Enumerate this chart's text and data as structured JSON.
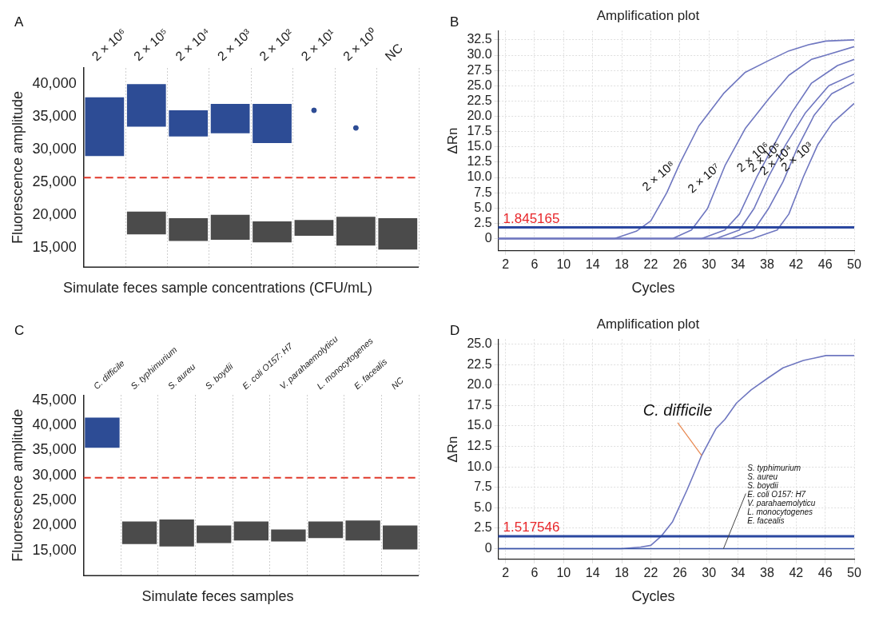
{
  "chart_data": [
    {
      "type": "bar",
      "annotations": [
        "A"
      ],
      "categories": [
        "2 × 10⁶",
        "2 × 10⁵",
        "2 × 10⁴",
        "2 × 10³",
        "2 × 10²",
        "2 × 10¹",
        "2 × 10⁰",
        "NC"
      ],
      "xlabel": "Simulate feces sample concentrations (CFU/mL)",
      "ylabel": "Fluorescence amplitude",
      "ylim": [
        12000,
        42500
      ],
      "yticks": [
        {
          "value": 15000,
          "label": "15,000"
        },
        {
          "value": 20000,
          "label": "20,000"
        },
        {
          "value": 25000,
          "label": "25,000"
        },
        {
          "value": 30000,
          "label": "30,000"
        },
        {
          "value": 35000,
          "label": "35,000"
        },
        {
          "value": 40000,
          "label": "40,000"
        }
      ],
      "grid": "x",
      "ref_lines": [
        {
          "axis": "y",
          "value": 25700,
          "color": "#e0392b",
          "line_style": "dashed"
        }
      ],
      "series": [
        {
          "color": "#2d4c95",
          "base": [
            29000,
            33500,
            32000,
            32500,
            31000,
            null,
            null,
            null
          ],
          "values": [
            9000,
            6500,
            4000,
            4500,
            6000,
            null,
            null,
            null
          ]
        },
        {
          "color": "#4b4b4b",
          "base": [
            null,
            17000,
            16000,
            16200,
            15800,
            16800,
            15300,
            14700
          ],
          "values": [
            null,
            3500,
            3500,
            3800,
            3200,
            2400,
            4400,
            4800
          ]
        },
        {
          "type": "scatter",
          "color": "#2d4c95",
          "marker": "circle",
          "x": [
            "2 × 10¹",
            "2 × 10⁰"
          ],
          "values": [
            36000,
            33300
          ]
        }
      ]
    },
    {
      "type": "line",
      "annotations": [
        "B"
      ],
      "title": "Amplification plot",
      "xlabel": "Cycles",
      "ylabel": "ΔRn",
      "xlim": [
        1,
        50
      ],
      "xticks": [
        2,
        6,
        10,
        14,
        18,
        22,
        26,
        30,
        34,
        38,
        42,
        46,
        50
      ],
      "ylim": [
        -2,
        34
      ],
      "yticks": [
        0,
        2.5,
        {
          "value": 5,
          "label": "5.0"
        },
        7.5,
        {
          "value": 10,
          "label": "10.0"
        },
        12.5,
        {
          "value": 15,
          "label": "15.0"
        },
        17.5,
        {
          "value": 20,
          "label": "20.0"
        },
        22.5,
        {
          "value": 25,
          "label": "25.0"
        },
        27.5,
        {
          "value": 30,
          "label": "30.0"
        },
        32.5
      ],
      "grid": true,
      "marker": "none",
      "ref_lines": [
        {
          "axis": "y",
          "value": 1.845165,
          "label": "1.845165",
          "color": "#2b48a0",
          "line_style": "solid"
        }
      ],
      "series": [
        {
          "name": "2 × 10⁸",
          "color": "#6f77c0",
          "x": [
            1,
            17,
            20,
            22,
            24.2,
            26,
            28.6,
            32,
            35,
            38.2,
            41,
            43.7,
            46.1,
            50
          ],
          "values": [
            0,
            0,
            1.2,
            2.9,
            7.5,
            12.3,
            18.4,
            23.7,
            27.2,
            29.1,
            30.7,
            31.7,
            32.3,
            32.5
          ]
        },
        {
          "name": "2 × 10⁷",
          "color": "#6f77c0",
          "x": [
            1,
            25,
            27.6,
            29.8,
            32.2,
            35,
            38.2,
            41,
            44.1,
            46.1,
            50
          ],
          "values": [
            0,
            0,
            1.4,
            4.9,
            11.9,
            18,
            22.8,
            26.7,
            29.3,
            30,
            31.4
          ]
        },
        {
          "name": "2 × 10⁶",
          "color": "#6f77c0",
          "x": [
            1,
            29,
            32.2,
            34.2,
            36.6,
            39,
            41.4,
            44.1,
            47.7,
            50
          ],
          "values": [
            0,
            0,
            1.4,
            4,
            10.1,
            15.4,
            20.6,
            25.4,
            28.3,
            29.3
          ]
        },
        {
          "name": "2 × 10⁵",
          "color": "#6f77c0",
          "x": [
            1,
            31,
            34.2,
            36.2,
            38.2,
            40.6,
            43.3,
            46.5,
            50
          ],
          "values": [
            0,
            0,
            1.4,
            4.9,
            10.1,
            15.4,
            20.6,
            25,
            26.9
          ]
        },
        {
          "name": "2 × 10⁴",
          "color": "#6f77c0",
          "x": [
            1,
            33,
            36.2,
            38.2,
            40.2,
            42.2,
            44.5,
            46.9,
            50
          ],
          "values": [
            0,
            0,
            1.4,
            4.9,
            9.3,
            14.9,
            20.2,
            23.7,
            25.6
          ]
        },
        {
          "name": "2 × 10³",
          "color": "#6f77c0",
          "x": [
            1,
            36,
            39.4,
            41,
            43,
            45,
            47,
            50
          ],
          "values": [
            0,
            0,
            1.4,
            4,
            10.1,
            15.4,
            18.9,
            22.1
          ]
        }
      ]
    },
    {
      "type": "bar",
      "annotations": [
        "C"
      ],
      "categories": [
        "C. difficile",
        "S. typhimurium",
        "S. aureu",
        "S. boydii",
        "E. coli O157: H7",
        "V. parahaemolyticu",
        "L. monocytogenes",
        "E. facealis",
        "NC"
      ],
      "xlabel": "Simulate feces samples",
      "ylabel": "Fluorescence amplitude",
      "ylim": [
        10000,
        46000
      ],
      "yticks": [
        {
          "value": 15000,
          "label": "15,000"
        },
        {
          "value": 20000,
          "label": "20,000"
        },
        {
          "value": 25000,
          "label": "25,000"
        },
        {
          "value": 30000,
          "label": "30,000"
        },
        {
          "value": 35000,
          "label": "35,000"
        },
        {
          "value": 40000,
          "label": "40,000"
        },
        {
          "value": 45000,
          "label": "45,000"
        }
      ],
      "grid": "x",
      "ref_lines": [
        {
          "axis": "y",
          "value": 29500,
          "color": "#e0392b",
          "line_style": "dashed"
        }
      ],
      "series": [
        {
          "color": "#2d4c95",
          "base": [
            35500,
            null,
            null,
            null,
            null,
            null,
            null,
            null,
            null
          ],
          "values": [
            6000,
            null,
            null,
            null,
            null,
            null,
            null,
            null,
            null
          ]
        },
        {
          "color": "#4b4b4b",
          "base": [
            null,
            16300,
            15800,
            16500,
            17000,
            16800,
            17500,
            17000,
            15200
          ],
          "values": [
            null,
            4500,
            5400,
            3500,
            3800,
            2400,
            3300,
            4000,
            4800
          ]
        }
      ]
    },
    {
      "type": "line",
      "annotations": [
        "D",
        {
          "text": "S. typhimurium\nS. aureu\nS. boydii\nE. coli O157: H7\nV. parahaemolyticu\nL. monocytogenes\nE. facealis",
          "x": 32,
          "y": 0
        }
      ],
      "title": "Amplification plot",
      "xlabel": "Cycles",
      "ylabel": "ΔRn",
      "xlim": [
        1,
        50
      ],
      "xticks": [
        2,
        6,
        10,
        14,
        18,
        22,
        26,
        30,
        34,
        38,
        42,
        46,
        50
      ],
      "ylim": [
        -1.3,
        25.6
      ],
      "yticks": [
        0,
        2.5,
        {
          "value": 5,
          "label": "5.0"
        },
        7.5,
        {
          "value": 10,
          "label": "10.0"
        },
        12.5,
        {
          "value": 15,
          "label": "15.0"
        },
        17.5,
        {
          "value": 20,
          "label": "20.0"
        },
        22.5,
        {
          "value": 25,
          "label": "25.0"
        }
      ],
      "grid": true,
      "marker": "none",
      "ref_lines": [
        {
          "axis": "y",
          "value": 1.517546,
          "label": "1.517546",
          "color": "#2b48a0",
          "line_style": "solid"
        }
      ],
      "series": [
        {
          "color": "#3a55a8",
          "x": [
            1,
            50
          ],
          "values": [
            0,
            0
          ]
        },
        {
          "name": "C. difficile",
          "color": "#6f77c0",
          "x": [
            1,
            18,
            20.6,
            22,
            23.4,
            25,
            27,
            29,
            31,
            32.2,
            33.8,
            35.8,
            38.2,
            40.2,
            43,
            46.1,
            50
          ],
          "values": [
            0,
            0,
            0.2,
            0.4,
            1.5,
            3.3,
            7.2,
            11.4,
            14.7,
            15.8,
            17.8,
            19.4,
            20.9,
            22.1,
            23,
            23.6,
            23.6
          ]
        }
      ]
    }
  ]
}
